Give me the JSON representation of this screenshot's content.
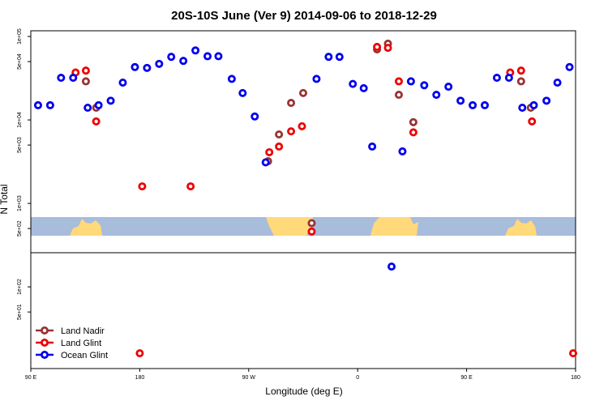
{
  "chart_data": {
    "type": "scatter",
    "title": "20S-10S June (Ver 9)   2014-09-06 to 2018-12-29",
    "x_label": "Longitude (deg E)",
    "y_label": "N Total",
    "ylog": true,
    "legend": "bottom-left",
    "xlim": [
      90,
      540
    ],
    "xticks": [
      {
        "value": 90,
        "label": "90 E"
      },
      180,
      {
        "value": 270,
        "label": "90 W"
      },
      {
        "value": 360,
        "label": "0"
      },
      {
        "value": 450,
        "label": "90 E"
      },
      {
        "value": 540,
        "label": "180"
      }
    ],
    "ylim": [
      10.5,
      117000
    ],
    "yticks": [
      {
        "value": 100000,
        "label": "1e+05"
      },
      {
        "value": 50000,
        "label": "5e+04"
      },
      {
        "value": 10000,
        "label": "1e+04"
      },
      {
        "value": 5000,
        "label": "5e+03"
      },
      {
        "value": 1000,
        "label": "1e+03"
      },
      {
        "value": 500,
        "label": "5e+02"
      },
      {
        "value": 100,
        "label": "1e+02"
      },
      {
        "value": 50,
        "label": "5e+01"
      }
    ],
    "series": [
      {
        "name": "Land Nadir",
        "color": "#993333",
        "x": [
          135.5,
          144,
          286,
          295,
          305,
          315,
          322,
          376,
          385,
          394,
          406,
          495,
          503
        ],
        "values": [
          29000,
          14000,
          3200,
          6700,
          16000,
          21000,
          580,
          70000,
          82000,
          20000,
          9400,
          29000,
          14000
        ]
      },
      {
        "name": "Land Glint",
        "color": "#ee0000",
        "x": [
          127,
          135.5,
          144,
          182,
          222,
          287,
          295,
          305,
          314,
          322,
          376,
          385,
          394,
          406,
          486,
          495,
          504,
          180,
          538
        ],
        "values": [
          37000,
          39000,
          9600,
          1600,
          1600,
          4100,
          4800,
          7300,
          8400,
          460,
          75000,
          73000,
          29000,
          7100,
          37000,
          39000,
          9600,
          16,
          16
        ]
      },
      {
        "name": "Ocean Glint",
        "color": "#0000ee",
        "x": [
          96,
          106,
          115,
          125,
          137,
          146,
          156,
          166,
          176,
          186,
          196,
          206,
          216,
          226,
          236,
          245,
          256,
          265,
          275,
          284,
          326,
          336,
          345,
          356,
          365,
          372,
          388,
          397,
          404,
          415,
          425,
          435,
          445,
          455,
          465,
          475,
          485,
          496,
          505.5,
          516,
          525,
          535
        ],
        "values": [
          15000,
          15000,
          32000,
          32000,
          14000,
          15000,
          17000,
          28000,
          43000,
          42000,
          47000,
          57000,
          51000,
          68000,
          58000,
          58000,
          31000,
          21000,
          11000,
          3100,
          31000,
          57000,
          57000,
          27000,
          24000,
          4800,
          175,
          4200,
          29000,
          26000,
          20000,
          25000,
          17000,
          15000,
          15000,
          32000,
          32000,
          14000,
          15000,
          17000,
          28000,
          43000
        ]
      }
    ]
  }
}
